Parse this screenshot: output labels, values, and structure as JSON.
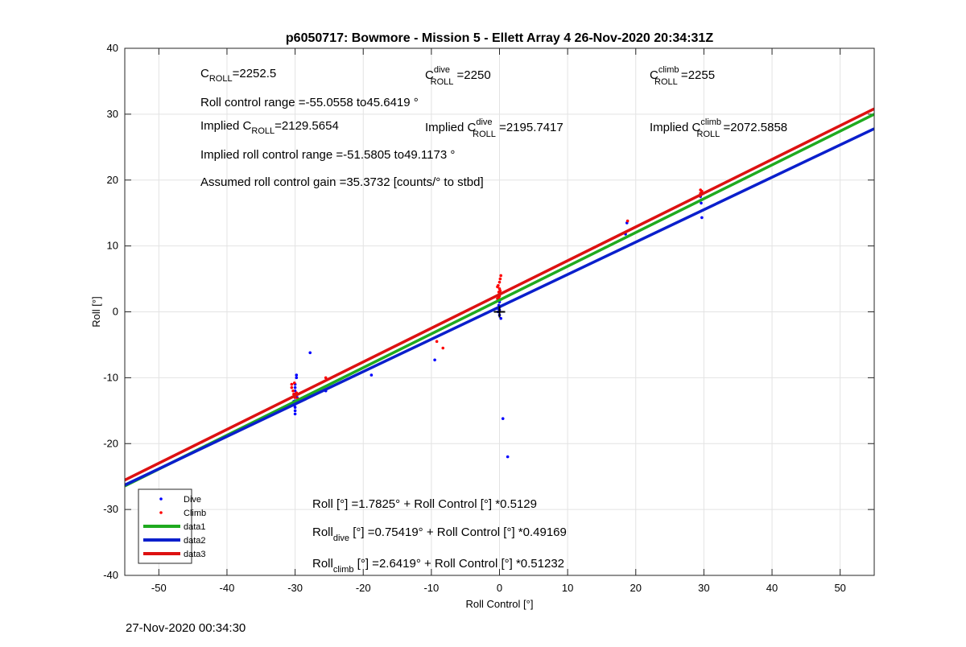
{
  "chart_data": {
    "type": "scatter",
    "title": "p6050717: Bowmore - Mission 5 - Ellett Array 4 26-Nov-2020 20:34:31Z",
    "xlabel": "Roll Control [°]",
    "ylabel": "Roll [°]",
    "xlim": [
      -55,
      55
    ],
    "ylim": [
      -40,
      40
    ],
    "xticks": [
      -50,
      -40,
      -30,
      -20,
      -10,
      0,
      10,
      20,
      30,
      40,
      50
    ],
    "yticks": [
      -40,
      -30,
      -20,
      -10,
      0,
      10,
      20,
      30,
      40
    ],
    "grid": true,
    "legend_position": "bottom-left",
    "series": [
      {
        "name": "Dive",
        "kind": "points",
        "color": "#0000ff",
        "points": [
          [
            -30,
            -12
          ],
          [
            -30,
            -12.5
          ],
          [
            -30,
            -13
          ],
          [
            -30,
            -13.5
          ],
          [
            -30,
            -14
          ],
          [
            -30,
            -14.5
          ],
          [
            -30,
            -15
          ],
          [
            -30,
            -15.5
          ],
          [
            -30,
            -11.5
          ],
          [
            -30,
            -11
          ],
          [
            -29.8,
            -10
          ],
          [
            -29.8,
            -9.6
          ],
          [
            -29.9,
            -12.8
          ],
          [
            -30.2,
            -13.6
          ],
          [
            -30.1,
            -14.2
          ],
          [
            -29.7,
            -13
          ],
          [
            -27.8,
            -6.2
          ],
          [
            -25.5,
            -12
          ],
          [
            -18.8,
            -9.6
          ],
          [
            -9.5,
            -7.3
          ],
          [
            -0.2,
            0
          ],
          [
            -0.2,
            0.5
          ],
          [
            -0.1,
            1
          ],
          [
            0,
            1.5
          ],
          [
            0,
            -0.5
          ],
          [
            0.2,
            -1
          ],
          [
            0,
            0.3
          ],
          [
            0.1,
            0.8
          ],
          [
            0.5,
            -16.2
          ],
          [
            1.2,
            -22
          ],
          [
            18.5,
            11.8
          ],
          [
            18.7,
            13.5
          ],
          [
            29.6,
            17
          ],
          [
            29.6,
            16.5
          ],
          [
            29.7,
            14.3
          ],
          [
            29.5,
            17.5
          ],
          [
            29.7,
            18
          ]
        ]
      },
      {
        "name": "Climb",
        "kind": "points",
        "color": "#ff0000",
        "points": [
          [
            -30.5,
            -11
          ],
          [
            -30.5,
            -11.5
          ],
          [
            -30.3,
            -12
          ],
          [
            -30.2,
            -12.5
          ],
          [
            -30,
            -13
          ],
          [
            -29.8,
            -12.3
          ],
          [
            -30.1,
            -10.8
          ],
          [
            -29.6,
            -13.2
          ],
          [
            -25.5,
            -10
          ],
          [
            -9.2,
            -4.5
          ],
          [
            -8.3,
            -5.5
          ],
          [
            -0.3,
            2
          ],
          [
            -0.2,
            2.5
          ],
          [
            -0.1,
            3
          ],
          [
            0,
            3.5
          ],
          [
            -0.2,
            4
          ],
          [
            0,
            4.5
          ],
          [
            0.1,
            5
          ],
          [
            0.2,
            5.5
          ],
          [
            -0.1,
            2.2
          ],
          [
            0.1,
            3.2
          ],
          [
            -0.3,
            3.8
          ],
          [
            0.2,
            2.8
          ],
          [
            0,
            2.4
          ],
          [
            18.8,
            13.8
          ],
          [
            29.5,
            18
          ],
          [
            29.5,
            18.5
          ],
          [
            29.6,
            17.8
          ],
          [
            29.7,
            18.3
          ],
          [
            29.4,
            17.6
          ]
        ]
      },
      {
        "name": "data1",
        "kind": "line",
        "color": "#1faa1f",
        "intercept": 1.7825,
        "slope": 0.5129
      },
      {
        "name": "data2",
        "kind": "line",
        "color": "#0a1fcc",
        "intercept": 0.75419,
        "slope": 0.49169
      },
      {
        "name": "data3",
        "kind": "line",
        "color": "#dd1111",
        "intercept": 2.6419,
        "slope": 0.51232
      }
    ],
    "cross_marker": [
      0,
      0
    ],
    "annotations": {
      "c_roll": {
        "base": "C",
        "sub": "ROLL",
        "sup": "",
        "value": "=2252.5"
      },
      "c_roll_dive": {
        "base": "C",
        "sub": "ROLL",
        "sup": "dive",
        "value": "=2250"
      },
      "c_roll_climb": {
        "base": "C",
        "sub": "ROLL",
        "sup": "climb",
        "value": "=2255"
      },
      "range": "Roll control range =-55.0558 to45.6419 °",
      "implied_c_roll": {
        "prefix": "Implied ",
        "base": "C",
        "sub": "ROLL",
        "sup": "",
        "value": "=2129.5654"
      },
      "implied_c_roll_dive": {
        "prefix": "Implied ",
        "base": "C",
        "sub": "ROLL",
        "sup": "dive",
        "value": "=2195.7417"
      },
      "implied_c_roll_climb": {
        "prefix": "Implied ",
        "base": "C",
        "sub": "ROLL",
        "sup": "climb",
        "value": "=2072.5858"
      },
      "implied_range": "Implied roll control range =-51.5805 to49.1173 °",
      "gain": "Assumed roll control gain =35.3732 [counts/° to stbd]",
      "fit_all": "Roll [°] =1.7825° + Roll Control [°] *0.5129",
      "fit_dive": {
        "base": "Roll",
        "sub": "dive",
        "rest": " [°] =0.75419° + Roll Control [°] *0.49169"
      },
      "fit_climb": {
        "base": "Roll",
        "sub": "climb",
        "rest": " [°] =2.6419° + Roll Control [°] *0.51232"
      }
    }
  },
  "footer": {
    "timestamp": "27-Nov-2020 00:34:30"
  }
}
